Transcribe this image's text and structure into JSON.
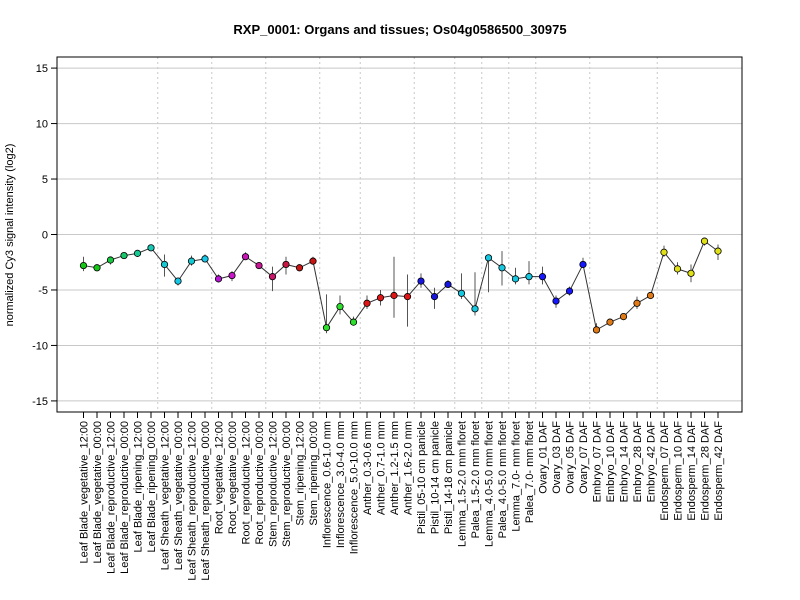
{
  "chart_data": {
    "type": "line",
    "title": "RXP_0001: Organs and tissues; Os04g0586500_30975",
    "xlabel": "",
    "ylabel": "normalized Cy3 signal intensity (log2)",
    "ylim": [
      -16,
      16
    ],
    "yticks": [
      -15,
      -10,
      -5,
      0,
      5,
      10,
      15
    ],
    "grid": "horizontal gridlines at y ticks; vertical dotted separators between tissue groups",
    "categories": [
      "Leaf Blade_vegetative_12:00",
      "Leaf Blade_vegetative_00:00",
      "Leaf Blade_reproductive_12:00",
      "Leaf Blade_reproductive_00:00",
      "Leaf Blade_ripening_12:00",
      "Leaf Blade_ripening_00:00",
      "Leaf Sheath_vegetative_12:00",
      "Leaf Sheath_vegetative_00:00",
      "Leaf Sheath_reproductive_12:00",
      "Leaf Sheath_reproductive_00:00",
      "Root_vegetative_12:00",
      "Root_vegetative_00:00",
      "Root_reproductive_12:00",
      "Root_reproductive_00:00",
      "Stem_reproductive_12:00",
      "Stem_reproductive_00:00",
      "Stem_ripening_12:00",
      "Stem_ripening_00:00",
      "Inflorescence_0.6-1.0 mm",
      "Inflorescence_3.0-4.0 mm",
      "Inflorescence_5.0-10.0 mm",
      "Anther_0.3-0.6 mm",
      "Anther_0.7-1.0 mm",
      "Anther_1.2-1.5 mm",
      "Anther_1.6-2.0 mm",
      "Pistil_05-10 cm panicle",
      "Pistil_10-14 cm panicle",
      "Pistil_14-18 cm panicle",
      "Lemma_1.5-2.0 mm floret",
      "Palea_1.5-2.0 mm floret",
      "Lemma_4.0-5.0 mm floret",
      "Palea_4.0-5.0 mm floret",
      "Lemma_7.0- mm floret",
      "Palea_7.0- mm floret",
      "Ovary_01 DAF",
      "Ovary_03 DAF",
      "Ovary_05 DAF",
      "Ovary_07 DAF",
      "Embryo_07 DAF",
      "Embryo_10 DAF",
      "Embryo_14 DAF",
      "Embryo_28 DAF",
      "Embryo_42 DAF",
      "Endosperm_07 DAF",
      "Endosperm_10 DAF",
      "Endosperm_14 DAF",
      "Endosperm_28 DAF",
      "Endosperm_42 DAF"
    ],
    "values": [
      -2.8,
      -3.0,
      -2.3,
      -1.9,
      -1.7,
      -1.2,
      -2.7,
      -4.2,
      -2.4,
      -2.2,
      -4.0,
      -3.7,
      -2.0,
      -2.8,
      -3.8,
      -2.7,
      -3.0,
      -2.4,
      -8.4,
      -6.5,
      -7.9,
      -6.2,
      -5.7,
      -5.5,
      -5.6,
      -4.2,
      -5.6,
      -4.5,
      -5.3,
      -6.7,
      -2.1,
      -3.0,
      -4.0,
      -3.8,
      -3.8,
      -6.0,
      -5.1,
      -2.7,
      -8.6,
      -7.9,
      -7.4,
      -6.2,
      -5.5,
      -1.6,
      -3.1,
      -3.5,
      -0.6,
      -1.5
    ],
    "error_low": [
      -3.3,
      -3.3,
      -2.7,
      -2.2,
      -2.0,
      -1.5,
      -3.8,
      -4.6,
      -2.8,
      -2.5,
      -4.3,
      -4.2,
      -2.3,
      -3.1,
      -5.1,
      -3.6,
      -3.3,
      -2.7,
      -8.9,
      -7.2,
      -8.2,
      -6.7,
      -6.4,
      -7.5,
      -8.3,
      -4.8,
      -6.7,
      -4.8,
      -5.8,
      -7.3,
      -5.2,
      -4.6,
      -4.5,
      -4.5,
      -4.5,
      -6.6,
      -5.5,
      -3.0,
      -8.8,
      -8.1,
      -7.6,
      -6.7,
      -5.7,
      -2.0,
      -3.6,
      -4.3,
      -1.0,
      -2.3
    ],
    "error_high": [
      -2.0,
      -2.7,
      -2.0,
      -1.7,
      -1.4,
      -0.9,
      -1.8,
      -3.9,
      -1.9,
      -1.8,
      -3.6,
      -3.3,
      -1.6,
      -2.5,
      -2.9,
      -2.0,
      -2.8,
      -2.0,
      -5.4,
      -5.5,
      -7.4,
      -5.5,
      -5.0,
      -2.0,
      -3.6,
      -3.5,
      -4.8,
      -4.1,
      -3.5,
      -3.4,
      -1.8,
      -1.5,
      -3.0,
      -2.4,
      -2.9,
      -5.5,
      -4.7,
      -2.1,
      -8.0,
      -7.6,
      -7.2,
      -5.6,
      -5.3,
      -1.0,
      -2.5,
      -2.7,
      -0.3,
      -0.9
    ],
    "point_colors": [
      "#16c816",
      "#16c816",
      "#16c840",
      "#16c86a",
      "#16c894",
      "#16c8b4",
      "#16c8d2",
      "#16c8e8",
      "#16c8d2",
      "#16c8e8",
      "#b416d2",
      "#c816c8",
      "#c816b4",
      "#c81694",
      "#c8166a",
      "#c81640",
      "#c81616",
      "#c81616",
      "#2ee02e",
      "#2ee02e",
      "#2ee02e",
      "#e01616",
      "#e01616",
      "#e01616",
      "#e01616",
      "#1616e0",
      "#1616e0",
      "#1616e0",
      "#16c8e0",
      "#16c8e0",
      "#16c8e0",
      "#16c8e0",
      "#16c8e0",
      "#16c8e0",
      "#1616ff",
      "#1616ff",
      "#1616ff",
      "#1616ff",
      "#e07a16",
      "#e07a16",
      "#e07a16",
      "#e07a16",
      "#e07a16",
      "#e0e016",
      "#e0e016",
      "#e0e016",
      "#e0e016",
      "#e0e016"
    ],
    "group_separators_after_index": [
      5,
      9,
      13,
      17,
      20,
      24,
      27,
      29,
      31,
      33,
      37,
      42
    ]
  }
}
